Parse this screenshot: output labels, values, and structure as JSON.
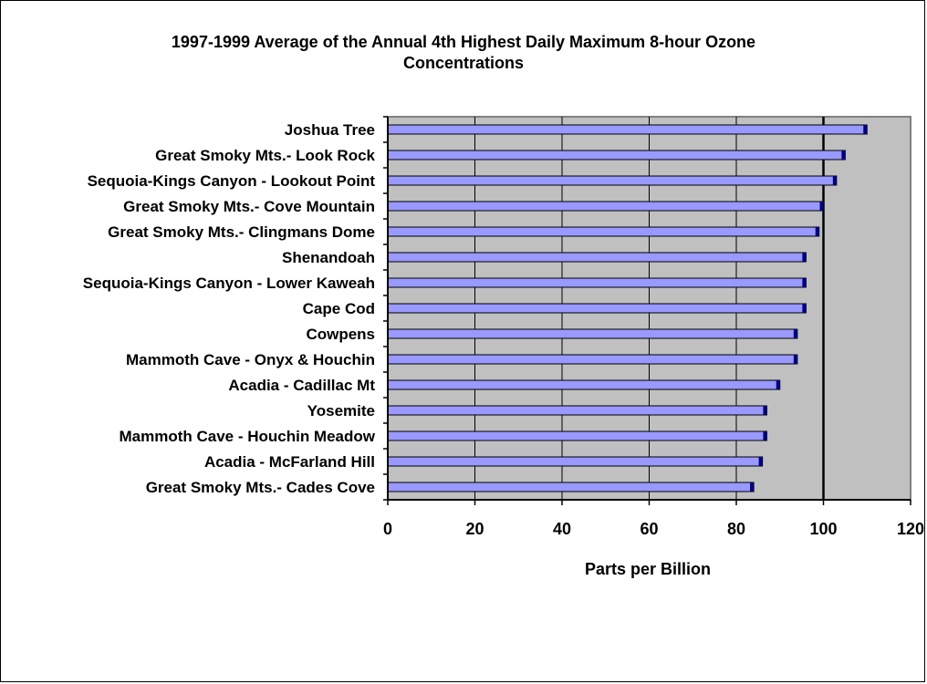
{
  "chart_data": {
    "type": "bar",
    "orientation": "horizontal",
    "title_line1": "1997-1999 Average of the Annual 4th Highest Daily Maximum 8-hour Ozone",
    "title_line2": "Concentrations",
    "xlabel": "Parts per Billion",
    "ylabel": "",
    "xlim": [
      0,
      120
    ],
    "xticks": [
      "0",
      "20",
      "40",
      "60",
      "80",
      "100",
      "120"
    ],
    "grid": "vertical gridlines",
    "reference_line": 100,
    "categories": [
      "Joshua Tree",
      "Great Smoky Mts.- Look Rock",
      "Sequoia-Kings Canyon - Lookout Point",
      "Great Smoky Mts.- Cove Mountain",
      "Great Smoky Mts.- Clingmans Dome",
      "Shenandoah",
      "Sequoia-Kings Canyon - Lower Kaweah",
      "Cape Cod",
      "Cowpens",
      "Mammoth Cave - Onyx & Houchin",
      "Acadia - Cadillac Mt",
      "Yosemite",
      "Mammoth Cave - Houchin Meadow",
      "Acadia - McFarland Hill",
      "Great Smoky Mts.- Cades Cove"
    ],
    "values": [
      110,
      105,
      103,
      100,
      99,
      96,
      96,
      96,
      94,
      94,
      90,
      87,
      87,
      86,
      84
    ],
    "colors": {
      "bar_fill": "#9999ff",
      "bar_edge": "#000000",
      "plot_background": "#c0c0c0",
      "gridline": "#000000"
    }
  }
}
